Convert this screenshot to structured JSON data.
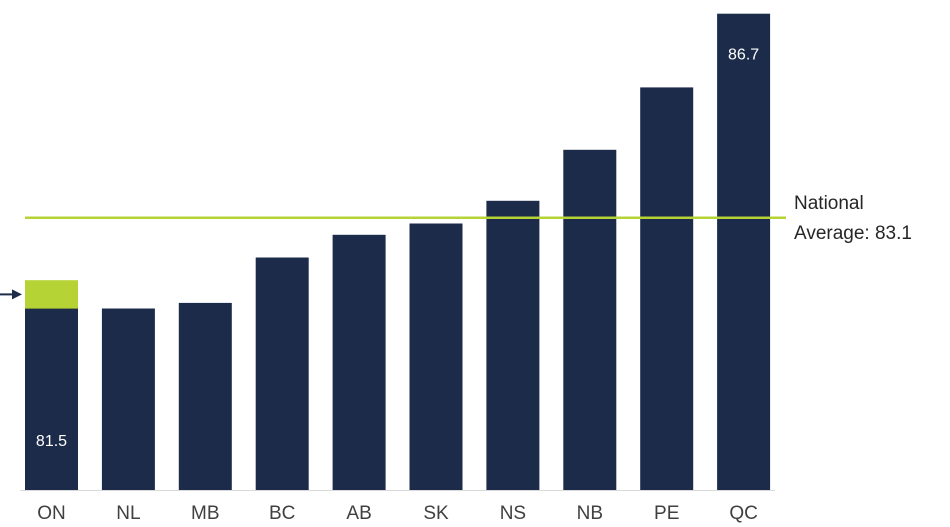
{
  "chart_data": {
    "type": "bar",
    "title": "",
    "xlabel": "",
    "ylabel": "",
    "categories": [
      "ON",
      "NL",
      "MB",
      "BC",
      "AB",
      "SK",
      "NS",
      "NB",
      "PE",
      "QC"
    ],
    "values": [
      81.5,
      81.5,
      81.6,
      82.4,
      82.8,
      83.0,
      83.4,
      84.3,
      85.4,
      86.7
    ],
    "highlight": {
      "category": "ON",
      "segment_top": 82.0,
      "color": "#b5d334"
    },
    "data_labels": [
      {
        "category": "ON",
        "text": "81.5"
      },
      {
        "category": "QC",
        "text": "86.7"
      }
    ],
    "reference_line": {
      "value": 83.1,
      "label_line1": "National",
      "label_line2": "Average: 83.1",
      "color": "#b5d334"
    },
    "ylim": [
      78.3,
      86.8
    ],
    "grid": false,
    "legend": "none",
    "colors": {
      "bar": "#1c2b4a",
      "arrow": "#1c2b4a",
      "axis": "#d9d9d9"
    }
  }
}
